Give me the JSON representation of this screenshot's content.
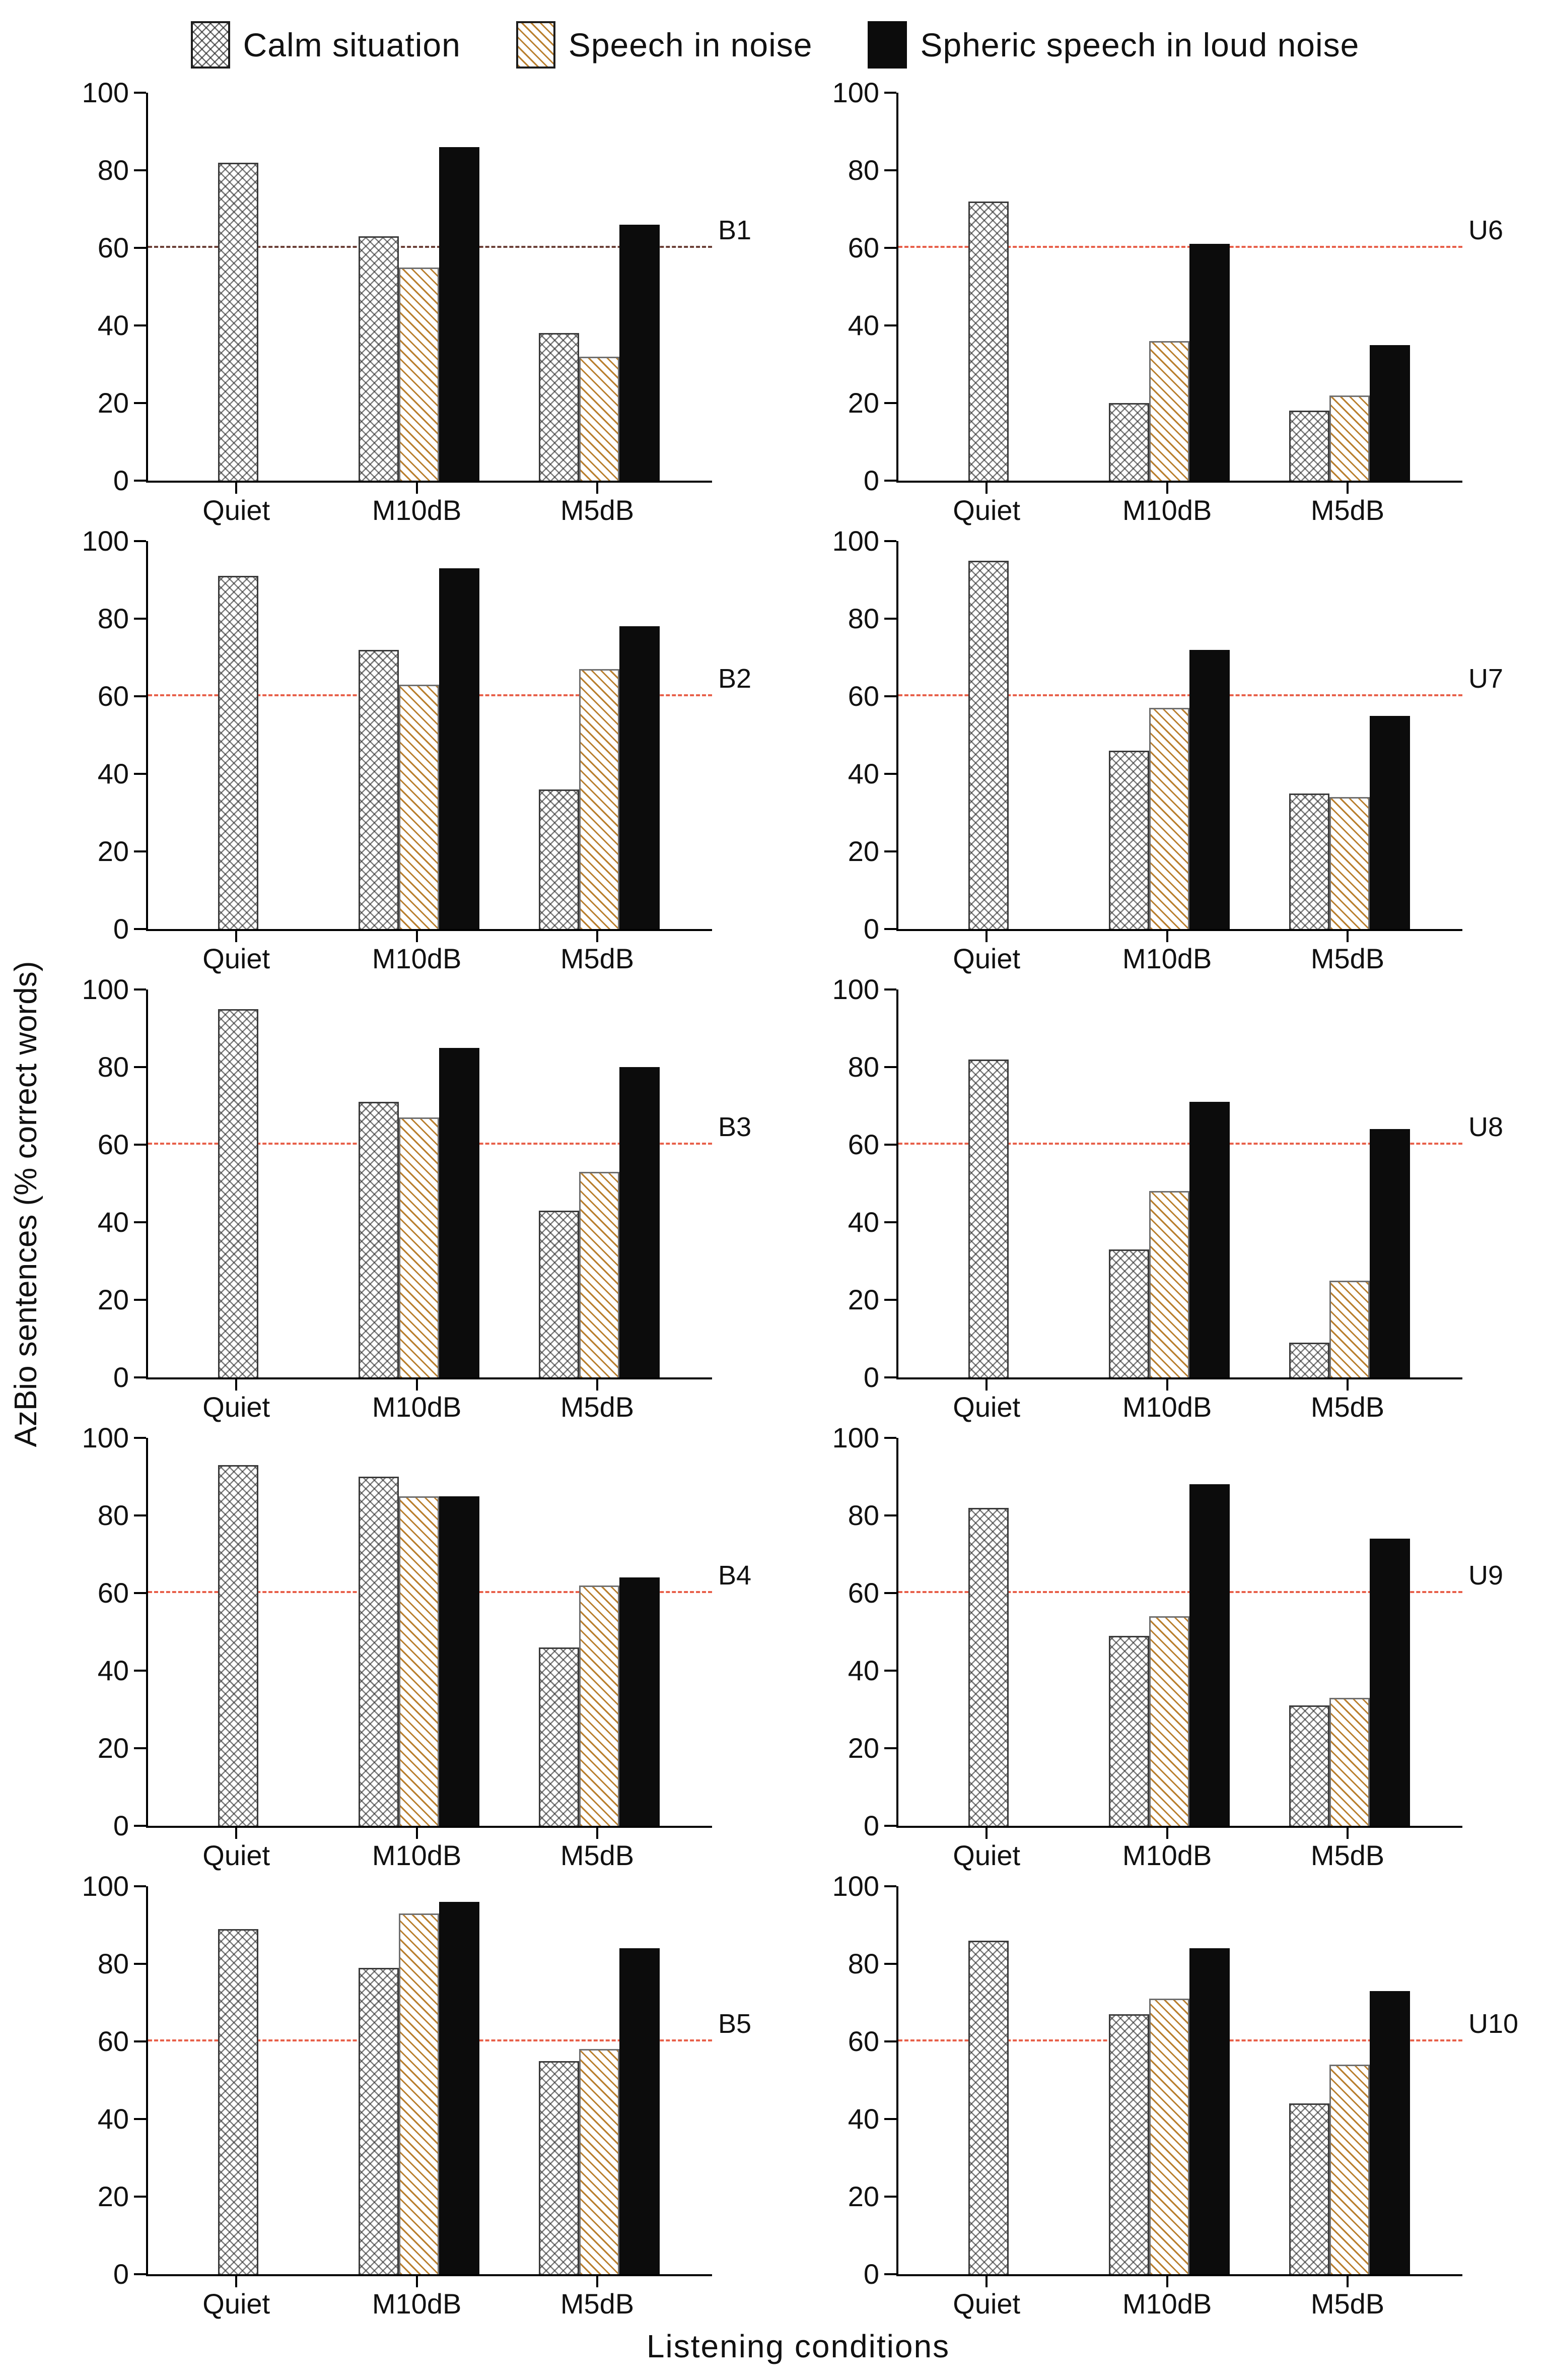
{
  "chart_data": {
    "type": "bar",
    "categories": [
      "Quiet",
      "M10dB",
      "M5dB"
    ],
    "yticks": [
      0,
      20,
      40,
      60,
      80,
      100
    ],
    "ylim": [
      0,
      100
    ],
    "ylabel": "AzBio sentences (% correct words)",
    "xlabel": "Listening conditions",
    "legend": [
      {
        "series": "calm",
        "label": "Calm situation"
      },
      {
        "series": "noise",
        "label": "Speech in noise"
      },
      {
        "series": "spheric",
        "label": "Spheric speech in loud noise"
      }
    ],
    "ref_line": 60,
    "ref_line_color_default": "#e8604a",
    "colors": {
      "calm_hatch": "#2d2d2d",
      "noise_hatch": "#b97f2e",
      "spheric_fill": "#0c0c0c",
      "axis": "#000000"
    },
    "panels": [
      {
        "label": "B1",
        "ref_color": "#6b4038",
        "values": {
          "calm": [
            82,
            63,
            38
          ],
          "noise": [
            null,
            55,
            32
          ],
          "spheric": [
            null,
            86,
            66
          ]
        }
      },
      {
        "label": "U6",
        "ref_color": "#e8604a",
        "values": {
          "calm": [
            72,
            20,
            18
          ],
          "noise": [
            null,
            36,
            22
          ],
          "spheric": [
            null,
            61,
            35
          ]
        }
      },
      {
        "label": "B2",
        "ref_color": "#e8604a",
        "values": {
          "calm": [
            91,
            72,
            36
          ],
          "noise": [
            null,
            63,
            67
          ],
          "spheric": [
            null,
            93,
            78
          ]
        }
      },
      {
        "label": "U7",
        "ref_color": "#e8604a",
        "values": {
          "calm": [
            95,
            46,
            35
          ],
          "noise": [
            null,
            57,
            34
          ],
          "spheric": [
            null,
            72,
            55
          ]
        }
      },
      {
        "label": "B3",
        "ref_color": "#e8604a",
        "values": {
          "calm": [
            95,
            71,
            43
          ],
          "noise": [
            null,
            67,
            53
          ],
          "spheric": [
            null,
            85,
            80
          ]
        }
      },
      {
        "label": "U8",
        "ref_color": "#e8604a",
        "values": {
          "calm": [
            82,
            33,
            9
          ],
          "noise": [
            null,
            48,
            25
          ],
          "spheric": [
            null,
            71,
            64
          ]
        }
      },
      {
        "label": "B4",
        "ref_color": "#e8604a",
        "values": {
          "calm": [
            93,
            90,
            46
          ],
          "noise": [
            null,
            85,
            62
          ],
          "spheric": [
            null,
            85,
            64
          ]
        }
      },
      {
        "label": "U9",
        "ref_color": "#e8604a",
        "values": {
          "calm": [
            82,
            49,
            31
          ],
          "noise": [
            null,
            54,
            33
          ],
          "spheric": [
            null,
            88,
            74
          ]
        }
      },
      {
        "label": "B5",
        "ref_color": "#e8604a",
        "values": {
          "calm": [
            89,
            79,
            55
          ],
          "noise": [
            null,
            93,
            58
          ],
          "spheric": [
            null,
            96,
            84
          ]
        }
      },
      {
        "label": "U10",
        "ref_color": "#e8604a",
        "values": {
          "calm": [
            86,
            67,
            44
          ],
          "noise": [
            null,
            71,
            54
          ],
          "spheric": [
            null,
            84,
            73
          ]
        }
      }
    ]
  }
}
